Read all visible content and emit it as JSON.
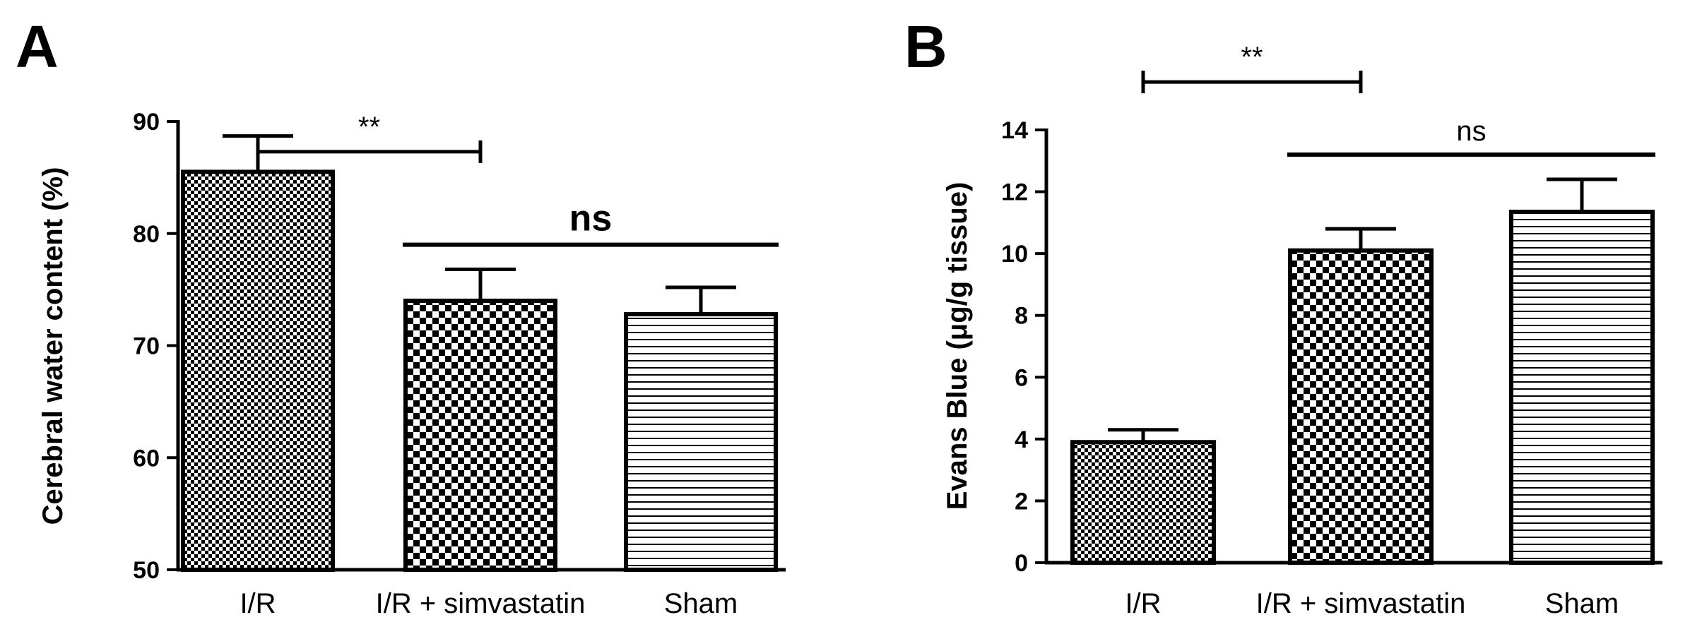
{
  "chart_data": [
    {
      "type": "bar",
      "panel_label": "A",
      "categories": [
        "I/R",
        "I/R + simvastatin",
        "Sham"
      ],
      "values": [
        85.5,
        74.0,
        72.8
      ],
      "errors": [
        3.2,
        2.8,
        2.4
      ],
      "patterns": [
        "fine-check",
        "coarse-check",
        "hlines"
      ],
      "title": "",
      "xlabel": "",
      "ylabel": "Cerebral water content (%)",
      "ylim": [
        50,
        90
      ],
      "yticks": [
        "50",
        "60",
        "70",
        "80",
        "90"
      ],
      "ytick_values": [
        50,
        60,
        70,
        80,
        90
      ],
      "annotations": [
        {
          "text": "**",
          "from": 0,
          "to": 1,
          "level": 87.3,
          "type": "bracket",
          "bold": false
        },
        {
          "text": "ns",
          "from": 1,
          "to": 2,
          "level": 79,
          "type": "line",
          "bold": true
        }
      ]
    },
    {
      "type": "bar",
      "panel_label": "B",
      "categories": [
        "I/R",
        "I/R + simvastatin",
        "Sham"
      ],
      "values": [
        3.9,
        10.1,
        11.35
      ],
      "errors": [
        0.4,
        0.7,
        1.05
      ],
      "patterns": [
        "fine-check",
        "coarse-check",
        "hlines"
      ],
      "title": "",
      "xlabel": "",
      "ylabel": "Evans Blue (μg/g tissue)",
      "ylim": [
        0,
        14
      ],
      "yticks": [
        "0",
        "2",
        "4",
        "6",
        "8",
        "10",
        "12",
        "14"
      ],
      "ytick_values": [
        0,
        2,
        4,
        6,
        8,
        10,
        12,
        14
      ],
      "annotations": [
        {
          "text": "**",
          "from": 0,
          "to": 1,
          "level": 15.55,
          "type": "bracket",
          "bold": false
        },
        {
          "text": "ns",
          "from": 1,
          "to": 2,
          "level": 13.2,
          "type": "line",
          "bold": false
        }
      ]
    }
  ]
}
